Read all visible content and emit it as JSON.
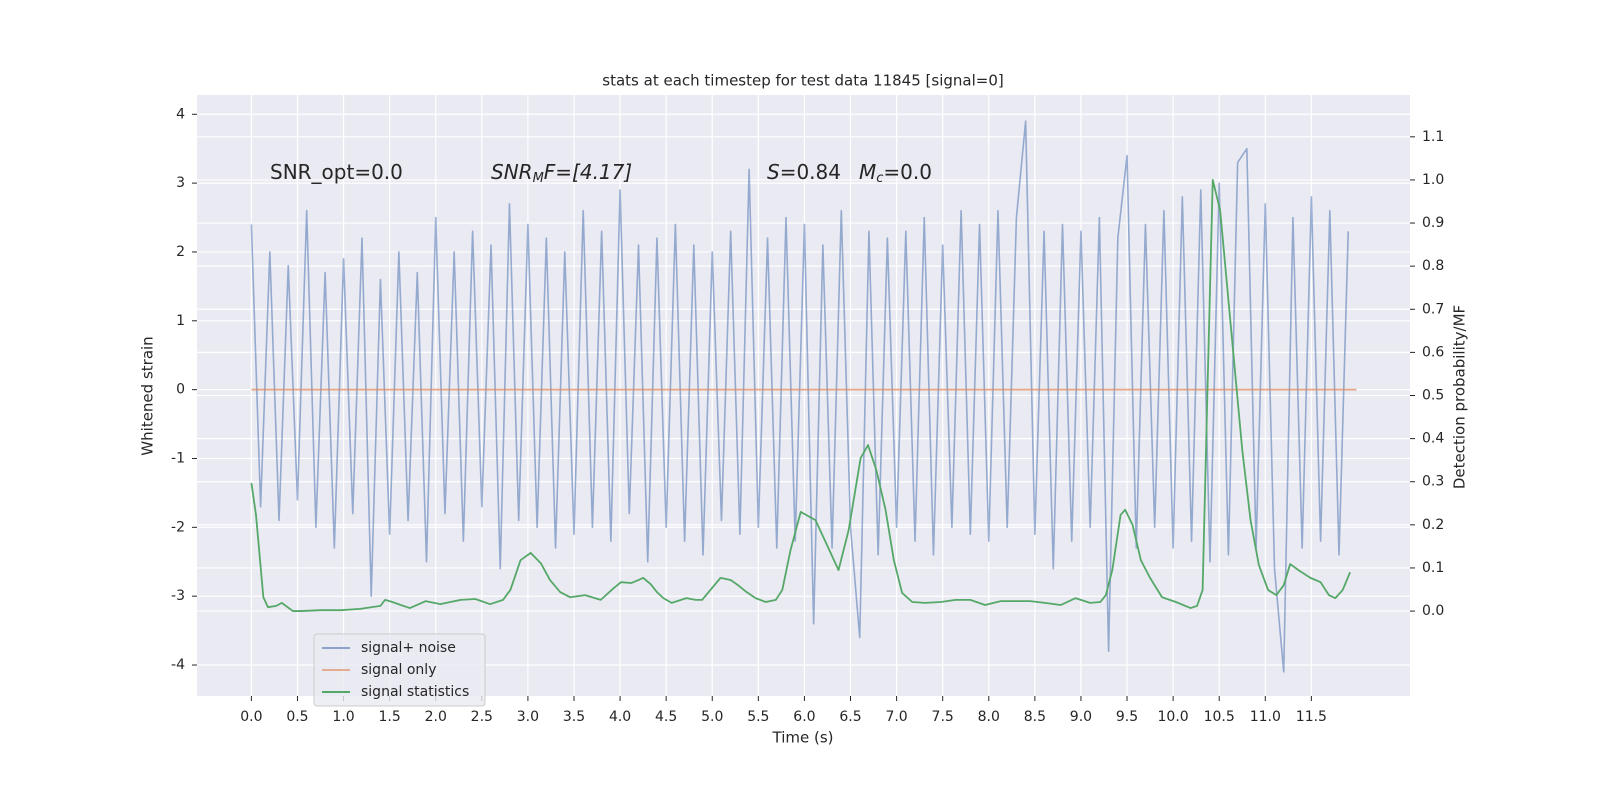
{
  "chart_data": {
    "type": "line",
    "title": "stats at each timestep for test data 11845 [signal=0]",
    "xlabel": "Time (s)",
    "ylabel": "Whitened strain",
    "y2label": "Detection probability/MF",
    "annotations": [
      [
        "SNR_opt=0.0"
      ],
      [
        "SNR",
        "M",
        "F=[4.17]"
      ],
      [
        "S",
        "=0.84"
      ],
      [
        "M",
        "c",
        "=0.0"
      ]
    ],
    "xlim": [
      -0.59,
      12.57
    ],
    "xticks": [
      {
        "value": 0,
        "label": "0.0"
      },
      0.5,
      {
        "value": 1,
        "label": "1.0"
      },
      1.5,
      {
        "value": 2,
        "label": "2.0"
      },
      2.5,
      {
        "value": 3,
        "label": "3.0"
      },
      3.5,
      {
        "value": 4,
        "label": "4.0"
      },
      4.5,
      {
        "value": 5,
        "label": "5.0"
      },
      5.5,
      {
        "value": 6,
        "label": "6.0"
      },
      6.5,
      {
        "value": 7,
        "label": "7.0"
      },
      7.5,
      {
        "value": 8,
        "label": "8.0"
      },
      8.5,
      {
        "value": 9,
        "label": "9.0"
      },
      9.5,
      {
        "value": 10,
        "label": "10.0"
      },
      10.5,
      {
        "value": 11,
        "label": "11.0"
      },
      11.5
    ],
    "ylim": [
      -4.45,
      4.28
    ],
    "yticks": [
      -4,
      -3,
      -2,
      -1,
      0,
      1,
      2,
      3,
      4
    ],
    "y2lim": [
      -0.197,
      1.197
    ],
    "y2ticks": [
      {
        "value": 0,
        "label": "0.0"
      },
      0.1,
      0.2,
      0.3,
      0.4,
      0.5,
      0.6,
      0.7,
      0.8,
      0.9,
      {
        "value": 1,
        "label": "1.0"
      },
      1.1
    ],
    "grid": true,
    "legend": "lower left",
    "series": [
      {
        "name": "signal+ noise",
        "color": "#4c72b0",
        "x": [
          0,
          0.1,
          0.2,
          0.3,
          0.4,
          0.5,
          0.6,
          0.7,
          0.8,
          0.9,
          1,
          1.1,
          1.2,
          1.3,
          1.4,
          1.5,
          1.6,
          1.7,
          1.8,
          1.9,
          2,
          2.1,
          2.2,
          2.3,
          2.4,
          2.5,
          2.6,
          2.7,
          2.8,
          2.9,
          3,
          3.1,
          3.2,
          3.3,
          3.4,
          3.5,
          3.6,
          3.7,
          3.8,
          3.9,
          4,
          4.1,
          4.2,
          4.3,
          4.4,
          4.5,
          4.6,
          4.7,
          4.8,
          4.9,
          5,
          5.1,
          5.2,
          5.3,
          5.4,
          5.5,
          5.6,
          5.7,
          5.8,
          5.9,
          6,
          6.1,
          6.2,
          6.3,
          6.4,
          6.5,
          6.6,
          6.7,
          6.8,
          6.9,
          7,
          7.1,
          7.2,
          7.3,
          7.4,
          7.5,
          7.6,
          7.7,
          7.8,
          7.9,
          8,
          8.1,
          8.2,
          8.3,
          8.4,
          8.5,
          8.6,
          8.7,
          8.8,
          8.9,
          9,
          9.1,
          9.2,
          9.3,
          9.4,
          9.5,
          9.6,
          9.7,
          9.8,
          9.9,
          10,
          10.1,
          10.2,
          10.3,
          10.4,
          10.5,
          10.6,
          10.7,
          10.8,
          10.9,
          11,
          11.1,
          11.2,
          11.3,
          11.4,
          11.5,
          11.6,
          11.7,
          11.8,
          11.9
        ],
        "values": [
          2.4,
          -1.7,
          2.0,
          -1.9,
          1.8,
          -1.6,
          2.6,
          -2.0,
          1.7,
          -2.3,
          1.9,
          -1.8,
          2.2,
          -3.0,
          1.6,
          -2.1,
          2.0,
          -1.9,
          1.7,
          -2.5,
          2.5,
          -1.8,
          2.0,
          -2.2,
          2.3,
          -1.7,
          2.1,
          -2.6,
          2.7,
          -1.9,
          2.4,
          -2.0,
          2.2,
          -2.3,
          2.0,
          -2.1,
          2.6,
          -2.0,
          2.3,
          -2.2,
          2.9,
          -1.8,
          2.1,
          -2.5,
          2.2,
          -2.0,
          2.4,
          -2.2,
          2.1,
          -2.4,
          2.0,
          -1.9,
          2.3,
          -2.1,
          3.2,
          -2.0,
          2.2,
          -2.3,
          2.5,
          -2.2,
          2.4,
          -3.4,
          2.1,
          -2.3,
          2.6,
          -2.0,
          -3.6,
          2.3,
          -2.4,
          2.2,
          -2.0,
          2.3,
          -2.2,
          2.5,
          -2.4,
          2.1,
          -2.0,
          2.6,
          -2.1,
          2.4,
          -2.2,
          2.6,
          -2.0,
          2.5,
          3.9,
          -2.1,
          2.3,
          -2.6,
          2.4,
          -2.2,
          2.3,
          -2.0,
          2.5,
          -3.8,
          2.2,
          3.4,
          -2.3,
          2.4,
          -2.0,
          2.6,
          -2.3,
          2.8,
          -2.2,
          2.9,
          -2.5,
          3.0,
          -2.4,
          3.3,
          3.5,
          -2.3,
          2.7,
          -2.6,
          -4.1,
          2.5,
          -2.3,
          2.8,
          -2.2,
          2.6,
          -2.4,
          2.3
        ]
      },
      {
        "name": "signal only",
        "color": "#dd8452",
        "x": [
          0,
          11.99
        ],
        "values": [
          0,
          0
        ]
      },
      {
        "name": "signal statistics",
        "color": "#55a868",
        "axis": "y2",
        "x": [
          0,
          0.05,
          0.13,
          0.18,
          0.27,
          0.33,
          0.45,
          0.53,
          0.75,
          0.97,
          1.18,
          1.4,
          1.45,
          1.53,
          1.62,
          1.72,
          1.89,
          2.05,
          2.27,
          2.43,
          2.59,
          2.73,
          2.81,
          2.92,
          3.03,
          3.14,
          3.24,
          3.35,
          3.46,
          3.62,
          3.79,
          3.93,
          4.01,
          4.12,
          4.2,
          4.25,
          4.33,
          4.4,
          4.47,
          4.56,
          4.72,
          4.82,
          4.89,
          4.98,
          5.09,
          5.2,
          5.28,
          5.36,
          5.47,
          5.58,
          5.69,
          5.76,
          5.85,
          5.96,
          6.12,
          6.28,
          6.37,
          6.48,
          6.61,
          6.69,
          6.78,
          6.88,
          6.97,
          7.06,
          7.17,
          7.31,
          7.48,
          7.64,
          7.8,
          7.96,
          8.13,
          8.29,
          8.45,
          8.61,
          8.78,
          8.94,
          9.1,
          9.21,
          9.27,
          9.34,
          9.43,
          9.48,
          9.56,
          9.65,
          9.75,
          9.88,
          10.03,
          10.19,
          10.26,
          10.32,
          10.37,
          10.43,
          10.51,
          10.62,
          10.75,
          10.84,
          10.93,
          11.03,
          11.12,
          11.2,
          11.27,
          11.36,
          11.49,
          11.6,
          11.69,
          11.76,
          11.84,
          11.92
        ],
        "values": [
          0.297,
          0.223,
          0.032,
          0.009,
          0.012,
          0.019,
          0.0,
          0.0,
          0.002,
          0.002,
          0.005,
          0.012,
          0.026,
          0.021,
          0.014,
          0.007,
          0.023,
          0.016,
          0.026,
          0.028,
          0.016,
          0.026,
          0.049,
          0.118,
          0.135,
          0.111,
          0.072,
          0.044,
          0.032,
          0.037,
          0.026,
          0.053,
          0.067,
          0.065,
          0.072,
          0.077,
          0.063,
          0.044,
          0.03,
          0.019,
          0.03,
          0.026,
          0.026,
          0.049,
          0.077,
          0.072,
          0.06,
          0.046,
          0.03,
          0.021,
          0.026,
          0.049,
          0.142,
          0.23,
          0.211,
          0.137,
          0.095,
          0.188,
          0.355,
          0.385,
          0.327,
          0.235,
          0.118,
          0.042,
          0.021,
          0.019,
          0.021,
          0.026,
          0.026,
          0.014,
          0.023,
          0.023,
          0.023,
          0.019,
          0.014,
          0.03,
          0.019,
          0.021,
          0.037,
          0.095,
          0.223,
          0.235,
          0.2,
          0.118,
          0.077,
          0.032,
          0.021,
          0.007,
          0.012,
          0.049,
          0.49,
          1.0,
          0.93,
          0.675,
          0.374,
          0.211,
          0.107,
          0.049,
          0.037,
          0.06,
          0.109,
          0.095,
          0.077,
          0.067,
          0.037,
          0.03,
          0.049,
          0.09
        ]
      }
    ]
  }
}
